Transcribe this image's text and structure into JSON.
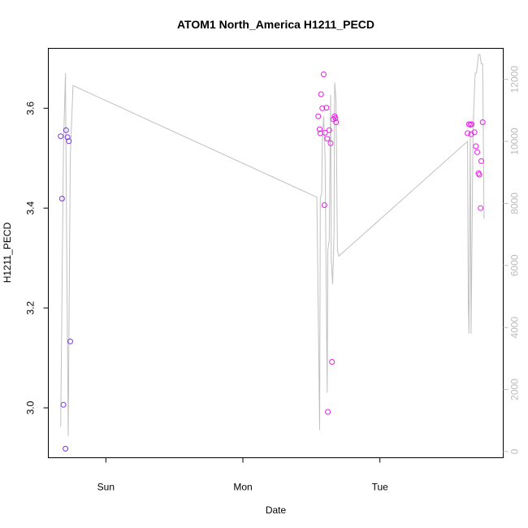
{
  "chart_data": {
    "type": "scatter",
    "title": "ATOM1 North_America H1211_PECD",
    "xlabel": "Date",
    "ylabel": "H1211_PECD",
    "x_unit": "day-of-week (fractional; 0 = Sun 00:00)",
    "x_ticks": [
      {
        "label": "Sun",
        "value": 0
      },
      {
        "label": "Mon",
        "value": 1
      },
      {
        "label": "Tue",
        "value": 2
      }
    ],
    "xlim": [
      -0.42,
      2.9
    ],
    "ylim": [
      2.9,
      3.72
    ],
    "y_ticks": [
      3.0,
      3.2,
      3.4,
      3.6
    ],
    "y_tick_labels": [
      "3.0",
      "3.2",
      "3.4",
      "3.6"
    ],
    "y2lim": [
      -200,
      13000
    ],
    "y2_ticks": [
      0,
      2000,
      4000,
      6000,
      8000,
      10000,
      12000
    ],
    "y2_tick_labels": [
      "0",
      "2000",
      "4000",
      "6000",
      "8000",
      "10000",
      "12000"
    ],
    "colors": {
      "points_early": "#7b2ff7",
      "points_late": "#e81ee8",
      "altitude_line": "#c0c0c0",
      "right_axis": "#bbbbbb"
    },
    "points": [
      {
        "x": -0.33,
        "y": 3.544,
        "group": "early"
      },
      {
        "x": -0.32,
        "y": 3.419,
        "group": "early"
      },
      {
        "x": -0.31,
        "y": 3.006,
        "group": "early"
      },
      {
        "x": -0.295,
        "y": 2.918,
        "group": "early"
      },
      {
        "x": -0.29,
        "y": 3.556,
        "group": "early"
      },
      {
        "x": -0.28,
        "y": 3.542,
        "group": "early"
      },
      {
        "x": -0.27,
        "y": 3.534,
        "group": "early"
      },
      {
        "x": -0.26,
        "y": 3.133,
        "group": "early"
      },
      {
        "x": 1.55,
        "y": 3.584,
        "group": "late"
      },
      {
        "x": 1.56,
        "y": 3.558,
        "group": "late"
      },
      {
        "x": 1.565,
        "y": 3.55,
        "group": "late"
      },
      {
        "x": 1.57,
        "y": 3.628,
        "group": "late"
      },
      {
        "x": 1.58,
        "y": 3.6,
        "group": "late"
      },
      {
        "x": 1.59,
        "y": 3.668,
        "group": "late"
      },
      {
        "x": 1.595,
        "y": 3.406,
        "group": "late"
      },
      {
        "x": 1.6,
        "y": 3.551,
        "group": "late"
      },
      {
        "x": 1.61,
        "y": 3.601,
        "group": "late"
      },
      {
        "x": 1.615,
        "y": 3.539,
        "group": "late"
      },
      {
        "x": 1.62,
        "y": 2.992,
        "group": "late"
      },
      {
        "x": 1.63,
        "y": 3.556,
        "group": "late"
      },
      {
        "x": 1.64,
        "y": 3.53,
        "group": "late"
      },
      {
        "x": 1.65,
        "y": 3.092,
        "group": "late"
      },
      {
        "x": 1.66,
        "y": 3.578,
        "group": "late"
      },
      {
        "x": 1.67,
        "y": 3.584,
        "group": "late"
      },
      {
        "x": 1.675,
        "y": 3.58,
        "group": "late"
      },
      {
        "x": 1.68,
        "y": 3.572,
        "group": "late"
      },
      {
        "x": 2.64,
        "y": 3.55,
        "group": "late"
      },
      {
        "x": 2.65,
        "y": 3.568,
        "group": "late"
      },
      {
        "x": 2.66,
        "y": 3.567,
        "group": "late"
      },
      {
        "x": 2.665,
        "y": 3.548,
        "group": "late"
      },
      {
        "x": 2.67,
        "y": 3.568,
        "group": "late"
      },
      {
        "x": 2.69,
        "y": 3.552,
        "group": "late"
      },
      {
        "x": 2.7,
        "y": 3.524,
        "group": "late"
      },
      {
        "x": 2.71,
        "y": 3.512,
        "group": "late"
      },
      {
        "x": 2.72,
        "y": 3.47,
        "group": "late"
      },
      {
        "x": 2.725,
        "y": 3.467,
        "group": "late"
      },
      {
        "x": 2.735,
        "y": 3.4,
        "group": "late"
      },
      {
        "x": 2.74,
        "y": 3.494,
        "group": "late"
      },
      {
        "x": 2.75,
        "y": 3.572,
        "group": "late"
      }
    ],
    "altitude_series": {
      "axis": "right",
      "x": [
        -0.33,
        -0.31,
        -0.295,
        -0.29,
        -0.275,
        -0.26,
        -0.24,
        1.54,
        1.56,
        1.565,
        1.575,
        1.58,
        1.59,
        1.6,
        1.615,
        1.62,
        1.63,
        1.64,
        1.645,
        1.655,
        1.665,
        1.67,
        1.68,
        1.69,
        1.7,
        2.64,
        2.645,
        2.65,
        2.66,
        2.665,
        2.68,
        2.695,
        2.705,
        2.71,
        2.72,
        2.73,
        2.74,
        2.75,
        2.76
      ],
      "y": [
        800,
        9800,
        12200,
        9000,
        500,
        9500,
        11800,
        8200,
        700,
        8200,
        8300,
        10000,
        10800,
        9500,
        1900,
        6500,
        6800,
        11500,
        6200,
        5400,
        7000,
        11900,
        11300,
        6500,
        6300,
        10000,
        4800,
        3800,
        10200,
        3800,
        10400,
        12200,
        12200,
        12400,
        12800,
        12800,
        12500,
        12500,
        7500
      ]
    }
  }
}
